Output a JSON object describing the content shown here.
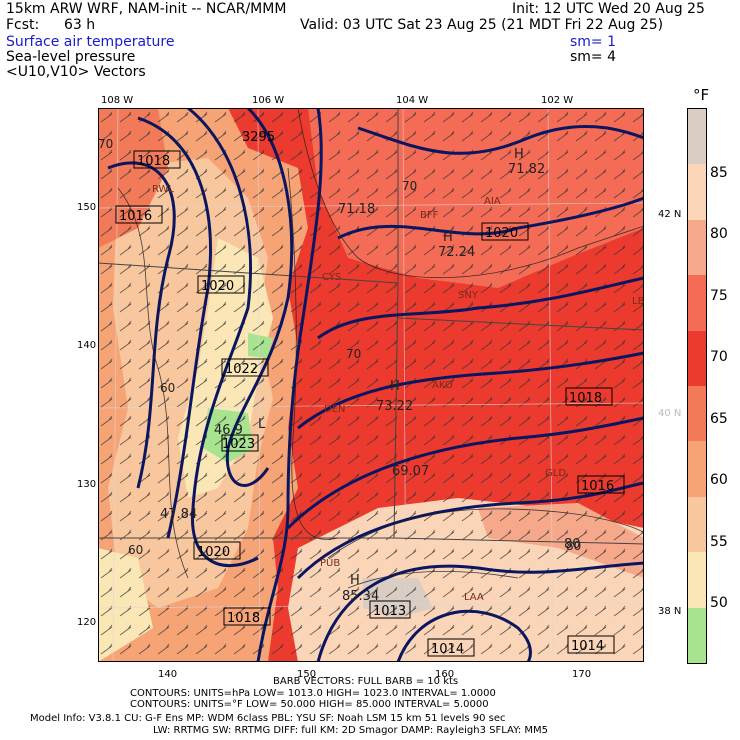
{
  "header": {
    "model": "15km ARW WRF, NAM-init -- NCAR/MMM",
    "init": "Init: 12 UTC Wed 20 Aug 25",
    "fcst_label": "Fcst:",
    "fcst_value": "63 h",
    "valid": "Valid: 03 UTC Sat 23 Aug 25 (21 MDT Fri 22 Aug 25)",
    "field1": "Surface air temperature",
    "field2": "Sea-level pressure",
    "field3": "<U10,V10> Vectors",
    "sm1": "sm= 1",
    "sm2": "sm= 4"
  },
  "lon_labels": [
    "108 W",
    "106 W",
    "104 W",
    "102 W"
  ],
  "lat_labels": [
    "42 N",
    "40 N",
    "38 N"
  ],
  "y_grid_labels": [
    "150",
    "140",
    "130",
    "120"
  ],
  "x_grid_labels": [
    "140",
    "150",
    "160",
    "170"
  ],
  "colorbar": {
    "unit": "°F",
    "labels": [
      "85",
      "80",
      "75",
      "70",
      "65",
      "60",
      "55",
      "50"
    ],
    "colors": [
      "#d9cdc4",
      "#fbd5b8",
      "#f6a88a",
      "#f46b56",
      "#ec3a2e",
      "#f37a58",
      "#f6a376",
      "#f9c79e",
      "#fbe6b6",
      "#a8e38f"
    ]
  },
  "map": {
    "pressure_labels": [
      "1018",
      "1016",
      "1020",
      "1022",
      "1023",
      "1020",
      "1018",
      "1020",
      "1018",
      "1016",
      "1014",
      "1014",
      "1013",
      "3295"
    ],
    "temp_labels": [
      "71.82",
      "71.18",
      "72.24",
      "73.22",
      "69.07",
      "46.9",
      "47.84",
      "85.34",
      "80"
    ],
    "highs": [
      "H",
      "H",
      "H",
      "H"
    ],
    "lows": [
      "L"
    ],
    "isotherm_labels": [
      "70",
      "70",
      "60",
      "60",
      "70",
      "80"
    ],
    "stations": [
      "BFF",
      "AIA",
      "CYS",
      "SNY",
      "DEN",
      "AKO",
      "GLD",
      "PUB",
      "LAA",
      "LBF",
      "RWL"
    ]
  },
  "footer": {
    "barb": "BARB VECTORS:  FULL BARB = 10 kts",
    "contours1": "CONTOURS:  UNITS=hPa  LOW=   1013.0        HIGH=  1023.0        INTERVAL=   1.0000",
    "contours2": "CONTOURS:  UNITS=°F  LOW=   50.000        HIGH=  85.000        INTERVAL=   5.0000",
    "model_info1": "Model Info: V3.8.1    CU: G-F Ens MP: WDM 6class  PBL: YSU       SF: Noah LSM     15 km    51 levels    90 sec",
    "model_info2": "LW: RRTMG   SW: RRTMG  DIFF: full   KM: 2D Smagor DAMP: Rayleigh3  SFLAY: MM5"
  }
}
